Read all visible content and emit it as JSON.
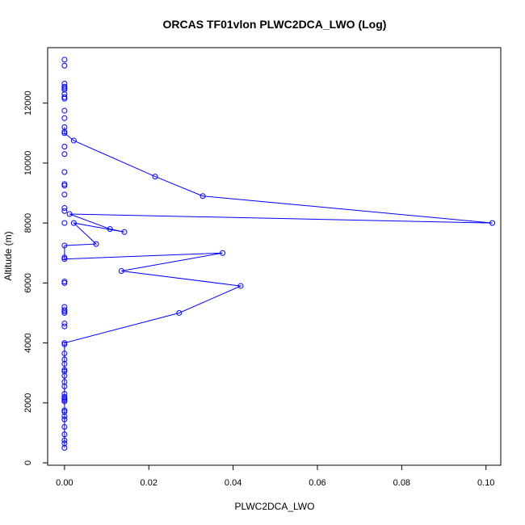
{
  "chart_data": {
    "type": "line",
    "title": "ORCAS TF01vlon PLWC2DCA_LWO (Log)",
    "xlabel": "PLWC2DCA_LWO",
    "ylabel": "Altitude (m)",
    "xlim": [
      -0.004,
      0.1035
    ],
    "ylim": [
      -80,
      13850
    ],
    "x_ticks": [
      0.0,
      0.02,
      0.04,
      0.06,
      0.08,
      0.1
    ],
    "x_tick_labels": [
      "0.00",
      "0.02",
      "0.04",
      "0.06",
      "0.08",
      "0.10"
    ],
    "y_ticks": [
      0,
      2000,
      4000,
      6000,
      8000,
      10000,
      12000
    ],
    "y_tick_labels": [
      "0",
      "2000",
      "4000",
      "6000",
      "8000",
      "10000",
      "12000"
    ],
    "grid": false,
    "series_color": "#0000ff",
    "series": [
      {
        "points": [
          [
            0,
            500
          ],
          [
            0,
            650
          ],
          [
            0,
            750
          ],
          [
            0,
            950
          ],
          [
            0,
            1200
          ],
          [
            0,
            1450
          ],
          [
            0,
            1550
          ],
          [
            0,
            1700
          ],
          [
            0,
            1750
          ],
          [
            0,
            2050
          ],
          [
            0,
            2100
          ],
          [
            0,
            2150
          ],
          [
            0,
            2200
          ],
          [
            0,
            2300
          ],
          [
            0,
            2550
          ],
          [
            0,
            2700
          ],
          [
            0,
            2900
          ],
          [
            0,
            3050
          ],
          [
            0,
            3100
          ],
          [
            0,
            3300
          ],
          [
            0,
            3450
          ],
          [
            0,
            3650
          ],
          [
            0,
            3950
          ],
          [
            0,
            4000
          ],
          [
            0.0272,
            5000
          ],
          [
            0.0418,
            5900
          ],
          [
            0.0135,
            6400
          ],
          [
            0.0375,
            7000
          ],
          [
            0,
            6800
          ],
          [
            0,
            6850
          ],
          [
            0,
            7250
          ],
          [
            0.0075,
            7300
          ],
          [
            0.0022,
            8000
          ],
          [
            0.0142,
            7700
          ],
          [
            0.0108,
            7800
          ],
          [
            0.0012,
            8300
          ],
          [
            0.1015,
            8000
          ],
          [
            0.0328,
            8900
          ],
          [
            0.0215,
            9550
          ],
          [
            0.0022,
            10750
          ],
          [
            0,
            11000
          ],
          [
            0,
            11050
          ],
          [
            0,
            11200
          ]
        ]
      }
    ],
    "extra_points": [
      [
        0,
        4550
      ],
      [
        0,
        4650
      ],
      [
        0,
        5000
      ],
      [
        0,
        5050
      ],
      [
        0,
        5100
      ],
      [
        0,
        5200
      ],
      [
        0,
        6000
      ],
      [
        0,
        6050
      ],
      [
        0,
        8000
      ],
      [
        0,
        8400
      ],
      [
        0,
        8500
      ],
      [
        0,
        8950
      ],
      [
        0,
        9250
      ],
      [
        0,
        9300
      ],
      [
        0,
        9700
      ],
      [
        0,
        10300
      ],
      [
        0,
        10550
      ],
      [
        0,
        11500
      ],
      [
        0,
        11750
      ],
      [
        0,
        12150
      ],
      [
        0,
        12200
      ],
      [
        0,
        12300
      ],
      [
        0,
        12450
      ],
      [
        0,
        12500
      ],
      [
        0,
        12550
      ],
      [
        0,
        12650
      ],
      [
        0,
        13250
      ],
      [
        0,
        13450
      ]
    ]
  }
}
